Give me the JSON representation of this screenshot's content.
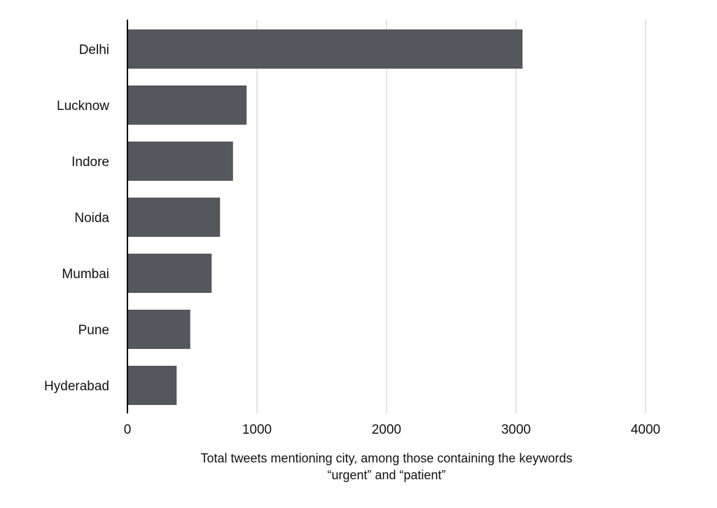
{
  "chart_data": {
    "type": "bar",
    "orientation": "horizontal",
    "title": "",
    "categories": [
      "Delhi",
      "Lucknow",
      "Indore",
      "Noida",
      "Mumbai",
      "Pune",
      "Hyderabad"
    ],
    "values": [
      3050,
      920,
      815,
      715,
      650,
      485,
      380
    ],
    "xlabel_lines": [
      "Total tweets mentioning city, among those containing the keywords",
      "“urgent” and “patient”"
    ],
    "ylabel": "",
    "xlim": [
      0,
      4000
    ],
    "xticks": [
      "0",
      "1000",
      "2000",
      "3000",
      "4000"
    ],
    "grid": "vertical",
    "bar_color": "#54575c"
  }
}
